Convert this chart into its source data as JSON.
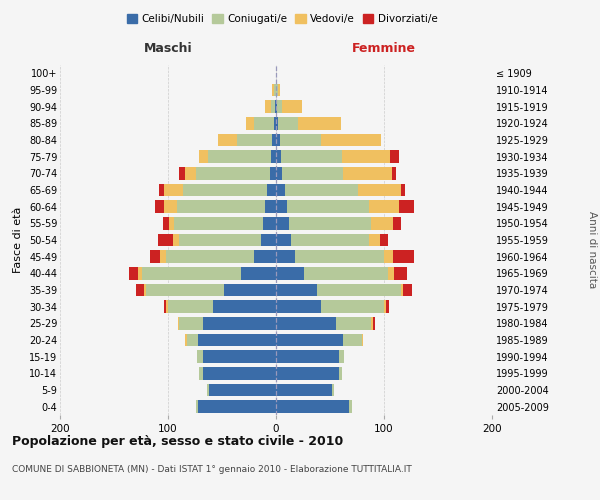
{
  "age_groups": [
    "0-4",
    "5-9",
    "10-14",
    "15-19",
    "20-24",
    "25-29",
    "30-34",
    "35-39",
    "40-44",
    "45-49",
    "50-54",
    "55-59",
    "60-64",
    "65-69",
    "70-74",
    "75-79",
    "80-84",
    "85-89",
    "90-94",
    "95-99",
    "100+"
  ],
  "birth_years": [
    "2005-2009",
    "2000-2004",
    "1995-1999",
    "1990-1994",
    "1985-1989",
    "1980-1984",
    "1975-1979",
    "1970-1974",
    "1965-1969",
    "1960-1964",
    "1955-1959",
    "1950-1954",
    "1945-1949",
    "1940-1944",
    "1935-1939",
    "1930-1934",
    "1925-1929",
    "1920-1924",
    "1915-1919",
    "1910-1914",
    "≤ 1909"
  ],
  "male": {
    "celibi": [
      72,
      62,
      68,
      68,
      72,
      68,
      58,
      48,
      32,
      20,
      14,
      12,
      10,
      8,
      6,
      5,
      4,
      2,
      1,
      0,
      0
    ],
    "coniugati": [
      2,
      2,
      3,
      5,
      10,
      22,
      42,
      72,
      92,
      82,
      76,
      82,
      82,
      78,
      68,
      58,
      32,
      18,
      4,
      2,
      0
    ],
    "vedovi": [
      0,
      0,
      0,
      0,
      2,
      1,
      2,
      2,
      4,
      5,
      5,
      5,
      12,
      18,
      10,
      8,
      18,
      8,
      5,
      2,
      0
    ],
    "divorziati": [
      0,
      0,
      0,
      0,
      0,
      0,
      2,
      8,
      8,
      10,
      14,
      6,
      8,
      4,
      6,
      0,
      0,
      0,
      0,
      0,
      0
    ]
  },
  "female": {
    "nubili": [
      68,
      52,
      58,
      58,
      62,
      56,
      42,
      38,
      26,
      18,
      14,
      12,
      10,
      8,
      6,
      5,
      4,
      2,
      1,
      0,
      0
    ],
    "coniugate": [
      2,
      2,
      3,
      5,
      18,
      32,
      58,
      78,
      78,
      82,
      72,
      76,
      76,
      68,
      56,
      56,
      38,
      18,
      5,
      2,
      0
    ],
    "vedove": [
      0,
      0,
      0,
      0,
      1,
      2,
      2,
      2,
      5,
      8,
      10,
      20,
      28,
      40,
      45,
      45,
      55,
      40,
      18,
      2,
      0
    ],
    "divorziate": [
      0,
      0,
      0,
      0,
      0,
      2,
      3,
      8,
      12,
      20,
      8,
      8,
      14,
      3,
      4,
      8,
      0,
      0,
      0,
      0,
      0
    ]
  },
  "colors": {
    "celibi": "#3a6ca8",
    "coniugati": "#b5c99a",
    "vedovi": "#f0c060",
    "divorziati": "#cc2222"
  },
  "title": "Popolazione per età, sesso e stato civile - 2010",
  "subtitle": "COMUNE DI SABBIONETA (MN) - Dati ISTAT 1° gennaio 2010 - Elaborazione TUTTITALIA.IT",
  "xlabel_left": "Maschi",
  "xlabel_right": "Femmine",
  "ylabel_left": "Fasce di età",
  "ylabel_right": "Anni di nascita",
  "legend_labels": [
    "Celibi/Nubili",
    "Coniugati/e",
    "Vedovi/e",
    "Divorziati/e"
  ],
  "xlim": 200,
  "background_color": "#f5f5f5"
}
